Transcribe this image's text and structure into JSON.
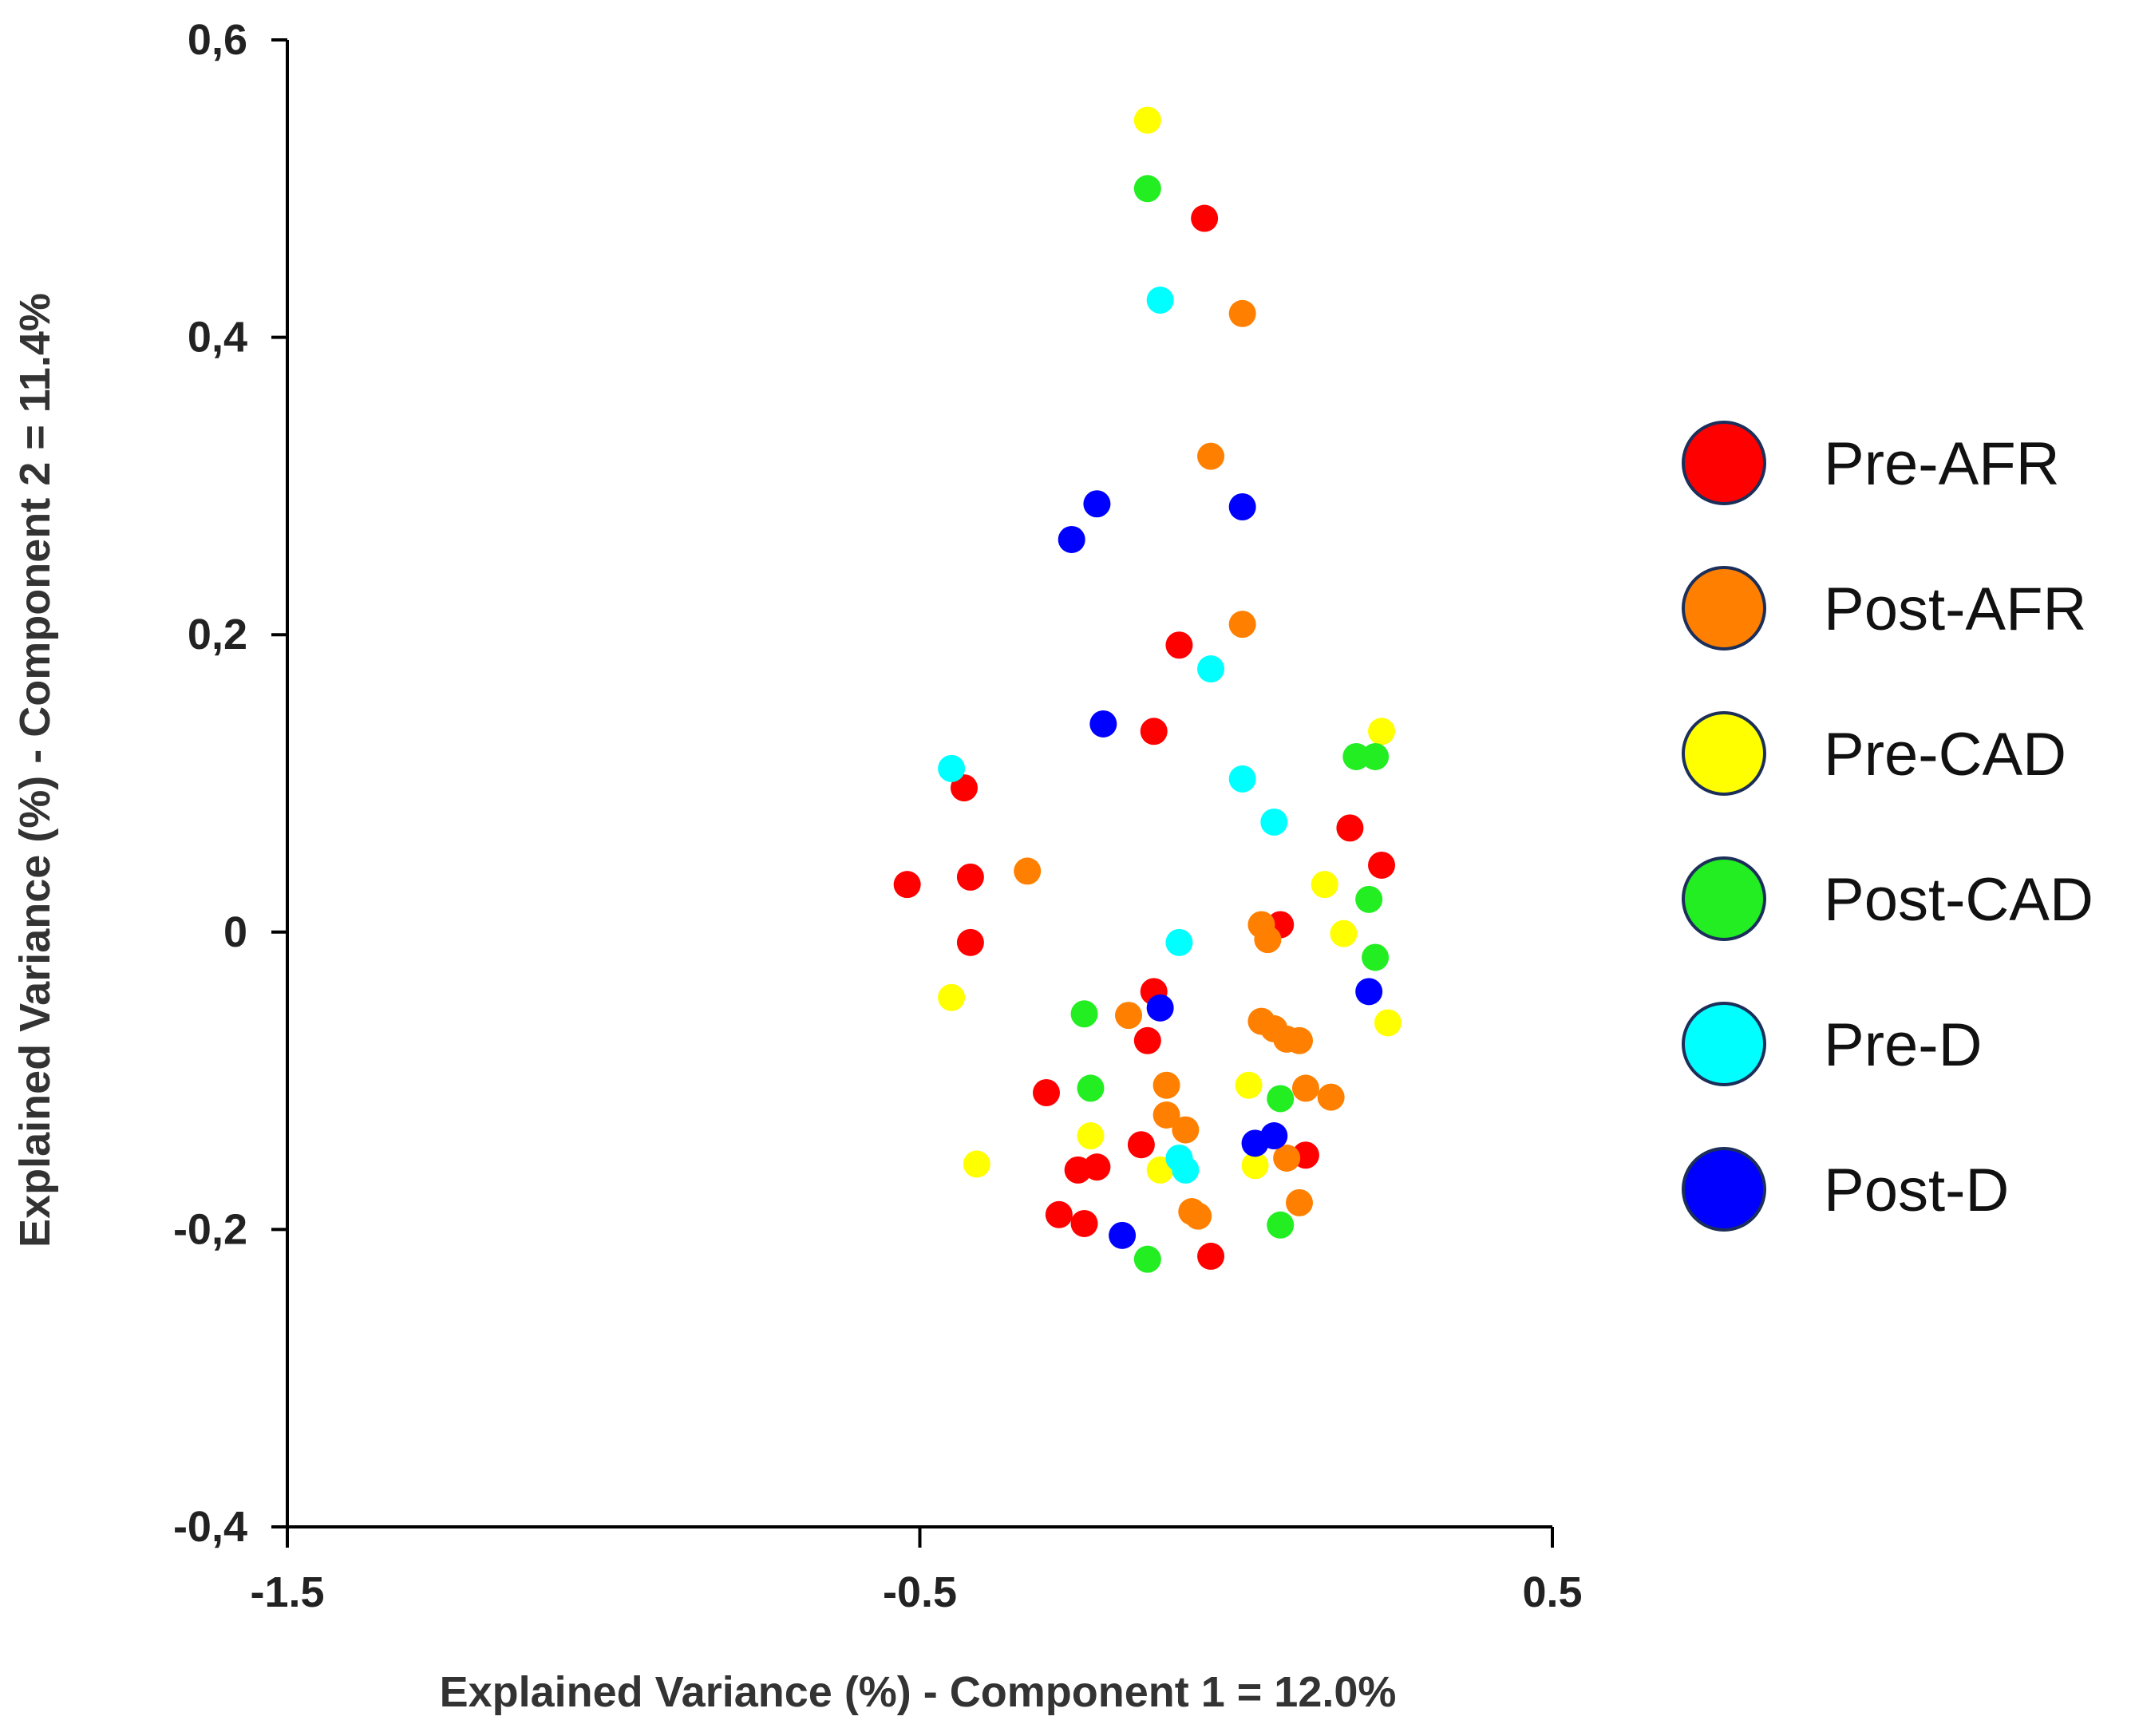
{
  "chart_data": {
    "type": "scatter",
    "title": "",
    "xlabel": "Explained Variance (%) - Component 1 = 12.0%",
    "ylabel": "Explained Variance (%) - Component 2 = 11.4%",
    "xlim": [
      -1.5,
      0.5
    ],
    "ylim": [
      -0.4,
      0.6
    ],
    "x_ticks": [
      {
        "value": -1.5,
        "label": "-1.5"
      },
      {
        "value": -0.5,
        "label": "-0.5"
      },
      {
        "value": 0.5,
        "label": "0.5"
      }
    ],
    "y_ticks": [
      {
        "value": 0.6,
        "label": "0,6"
      },
      {
        "value": 0.4,
        "label": "0,4"
      },
      {
        "value": 0.2,
        "label": "0,2"
      },
      {
        "value": 0.0,
        "label": "0"
      },
      {
        "value": -0.2,
        "label": "-0,2"
      },
      {
        "value": -0.4,
        "label": "-0,4"
      }
    ],
    "grid": false,
    "legend_position": "right",
    "series": [
      {
        "name": "Pre-AFR",
        "color": "#ff0000",
        "points": [
          [
            -0.05,
            0.48
          ],
          [
            -0.09,
            0.193
          ],
          [
            -0.13,
            0.135
          ],
          [
            -0.43,
            0.097
          ],
          [
            -0.52,
            0.032
          ],
          [
            -0.42,
            0.037
          ],
          [
            -0.42,
            -0.007
          ],
          [
            0.18,
            0.07
          ],
          [
            0.23,
            0.045
          ],
          [
            0.07,
            0.005
          ],
          [
            -0.13,
            -0.04
          ],
          [
            -0.14,
            -0.073
          ],
          [
            -0.3,
            -0.108
          ],
          [
            -0.15,
            -0.143
          ],
          [
            0.11,
            -0.15
          ],
          [
            -0.25,
            -0.16
          ],
          [
            -0.22,
            -0.158
          ],
          [
            -0.28,
            -0.19
          ],
          [
            -0.24,
            -0.196
          ],
          [
            -0.04,
            -0.218
          ]
        ]
      },
      {
        "name": "Post-AFR",
        "color": "#ff8000",
        "points": [
          [
            0.01,
            0.416
          ],
          [
            -0.04,
            0.32
          ],
          [
            0.01,
            0.207
          ],
          [
            -0.33,
            0.041
          ],
          [
            0.04,
            0.005
          ],
          [
            0.05,
            -0.005
          ],
          [
            -0.17,
            -0.056
          ],
          [
            0.04,
            -0.06
          ],
          [
            0.06,
            -0.065
          ],
          [
            0.08,
            -0.072
          ],
          [
            0.1,
            -0.073
          ],
          [
            -0.11,
            -0.103
          ],
          [
            0.11,
            -0.105
          ],
          [
            0.15,
            -0.111
          ],
          [
            -0.11,
            -0.123
          ],
          [
            -0.08,
            -0.133
          ],
          [
            0.08,
            -0.152
          ],
          [
            0.1,
            -0.182
          ],
          [
            -0.07,
            -0.188
          ],
          [
            -0.06,
            -0.191
          ]
        ]
      },
      {
        "name": "Pre-CAD",
        "color": "#ffff00",
        "points": [
          [
            -0.14,
            0.546
          ],
          [
            0.23,
            0.135
          ],
          [
            0.14,
            0.032
          ],
          [
            0.17,
            -0.001
          ],
          [
            -0.45,
            -0.044
          ],
          [
            0.24,
            -0.061
          ],
          [
            0.02,
            -0.103
          ],
          [
            -0.23,
            -0.137
          ],
          [
            -0.41,
            -0.156
          ],
          [
            -0.12,
            -0.16
          ],
          [
            0.03,
            -0.157
          ]
        ]
      },
      {
        "name": "Post-CAD",
        "color": "#22ee22",
        "points": [
          [
            -0.14,
            0.5
          ],
          [
            0.19,
            0.118
          ],
          [
            0.22,
            0.118
          ],
          [
            0.21,
            0.022
          ],
          [
            0.22,
            -0.017
          ],
          [
            -0.24,
            -0.055
          ],
          [
            -0.23,
            -0.105
          ],
          [
            0.07,
            -0.112
          ],
          [
            0.07,
            -0.197
          ],
          [
            -0.14,
            -0.22
          ]
        ]
      },
      {
        "name": "Pre-D",
        "color": "#00ffff",
        "points": [
          [
            -0.12,
            0.425
          ],
          [
            -0.04,
            0.177
          ],
          [
            0.01,
            0.103
          ],
          [
            -0.45,
            0.11
          ],
          [
            0.06,
            0.074
          ],
          [
            -0.09,
            -0.007
          ],
          [
            -0.09,
            -0.152
          ],
          [
            -0.08,
            -0.16
          ]
        ]
      },
      {
        "name": "Post-D",
        "color": "#0000ff",
        "points": [
          [
            -0.26,
            0.264
          ],
          [
            -0.22,
            0.288
          ],
          [
            0.01,
            0.286
          ],
          [
            -0.21,
            0.14
          ],
          [
            0.21,
            -0.04
          ],
          [
            -0.12,
            -0.051
          ],
          [
            0.03,
            -0.142
          ],
          [
            0.06,
            -0.137
          ],
          [
            -0.18,
            -0.204
          ]
        ]
      }
    ]
  }
}
